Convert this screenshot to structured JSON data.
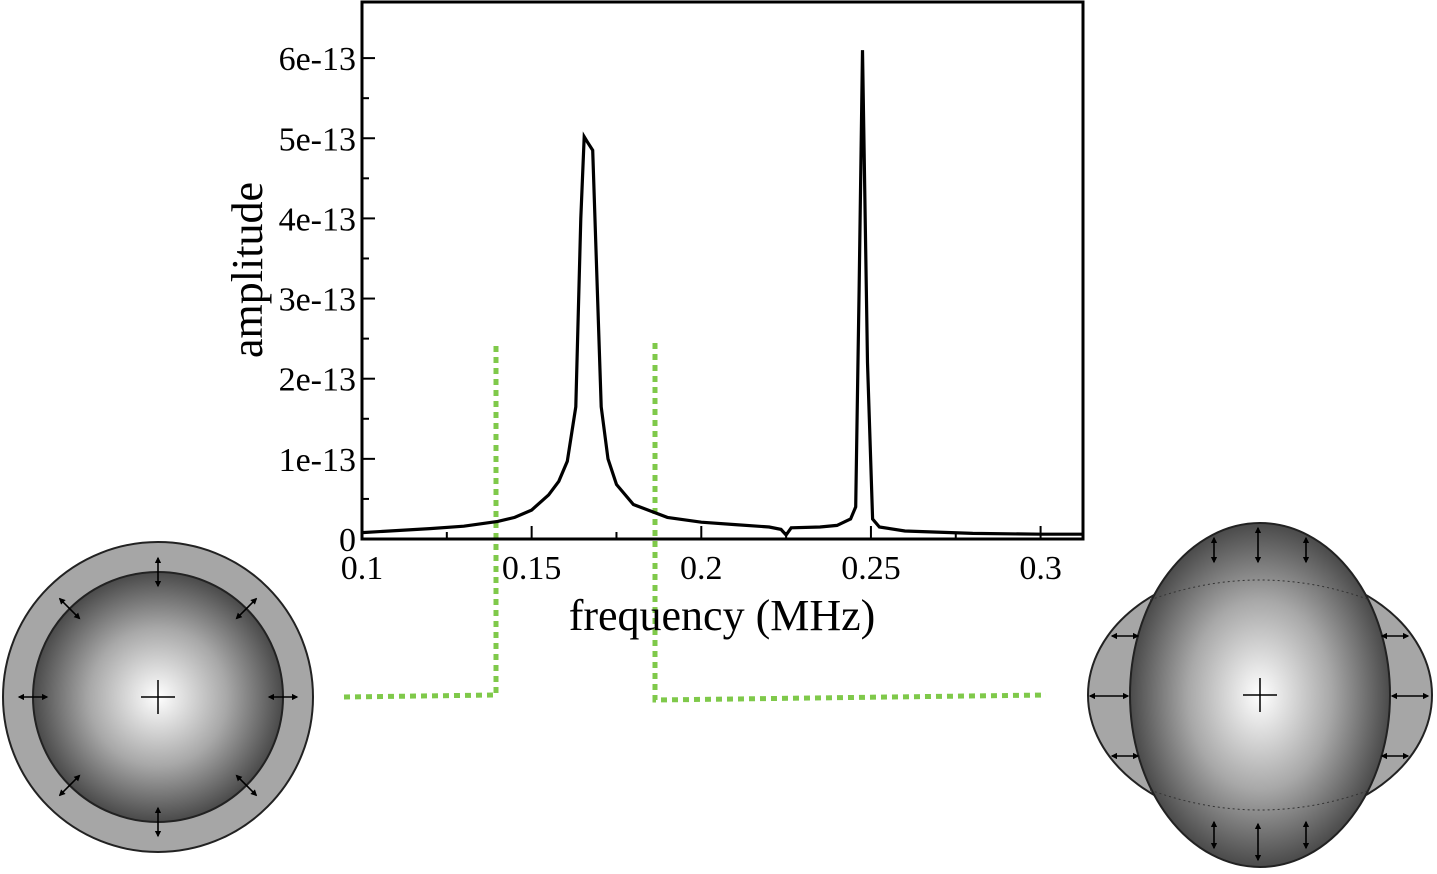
{
  "chart_data": {
    "type": "line",
    "xlabel": "frequency (MHz)",
    "ylabel": "amplitude",
    "xlim": [
      0.1,
      0.3125
    ],
    "ylim": [
      0,
      6.7e-13
    ],
    "grid": false,
    "x_ticks": [
      {
        "value": 0.1,
        "label": "0.1"
      },
      {
        "value": 0.15,
        "label": "0.15"
      },
      {
        "value": 0.2,
        "label": "0.2"
      },
      {
        "value": 0.25,
        "label": "0.25"
      },
      {
        "value": 0.3,
        "label": "0.3"
      }
    ],
    "y_ticks": [
      {
        "value": 0,
        "label": "0"
      },
      {
        "value": 1e-13,
        "label": "1e-13"
      },
      {
        "value": 2e-13,
        "label": "2e-13"
      },
      {
        "value": 3e-13,
        "label": "3e-13"
      },
      {
        "value": 4e-13,
        "label": "4e-13"
      },
      {
        "value": 5e-13,
        "label": "5e-13"
      },
      {
        "value": 6e-13,
        "label": "6e-13"
      }
    ],
    "series": [
      {
        "color": "#000000",
        "x": [
          0.1,
          0.12,
          0.13,
          0.14,
          0.145,
          0.15,
          0.155,
          0.158,
          0.1605,
          0.163,
          0.1645,
          0.1655,
          0.1665,
          0.168,
          0.1705,
          0.1725,
          0.175,
          0.18,
          0.19,
          0.2,
          0.21,
          0.22,
          0.2235,
          0.225,
          0.2265,
          0.235,
          0.24,
          0.244,
          0.2455,
          0.2465,
          0.2475,
          0.249,
          0.2505,
          0.2525,
          0.26,
          0.28,
          0.3,
          0.3125
        ],
        "y": [
          8e-15,
          1.3e-14,
          1.6e-14,
          2.2e-14,
          2.7e-14,
          3.6e-14,
          5.5e-14,
          7.2e-14,
          9.7e-14,
          1.65e-13,
          4e-13,
          5.02e-13,
          4.95e-13,
          4.85e-13,
          1.65e-13,
          1e-13,
          6.8e-14,
          4.3e-14,
          2.7e-14,
          2.1e-14,
          1.8e-14,
          1.5e-14,
          1.2e-14,
          5e-15,
          1.4e-14,
          1.5e-14,
          1.7e-14,
          2.5e-14,
          4e-14,
          3.1e-13,
          6.1e-13,
          2.2e-13,
          2.5e-14,
          1.5e-14,
          1e-14,
          7e-15,
          6e-15,
          6e-15
        ]
      }
    ]
  },
  "colors": {
    "connector": "#7fc94a",
    "shell": "#a6a6a6",
    "outline": "#222222",
    "core_center": "#ffffff",
    "core_edge": "#4a4a4a"
  },
  "illustrations": {
    "left": {
      "icon": "spherical-breathing-mode-icon"
    },
    "right": {
      "icon": "quadrupole-shape-mode-icon"
    }
  }
}
